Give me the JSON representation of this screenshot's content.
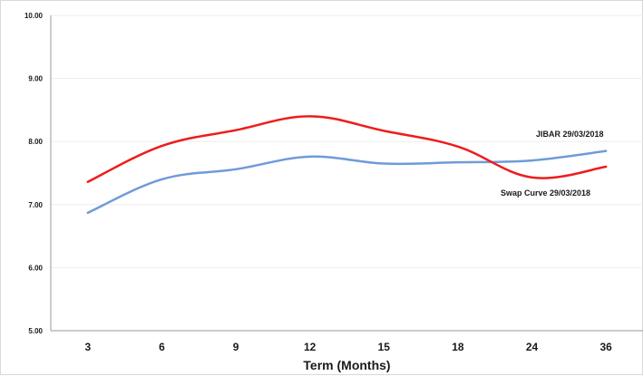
{
  "chart_data": {
    "type": "line",
    "categories": [
      "3",
      "6",
      "9",
      "12",
      "15",
      "18",
      "24",
      "36"
    ],
    "series": [
      {
        "name": "JIBAR  29/03/2018",
        "values": [
          6.87,
          7.4,
          7.56,
          7.76,
          7.65,
          7.67,
          7.7,
          7.85
        ],
        "color": "#6f9bd8"
      },
      {
        "name": "Swap Curve 29/03/2018",
        "values": [
          7.36,
          7.93,
          8.18,
          8.4,
          8.17,
          7.92,
          7.43,
          7.6
        ],
        "color": "#ee1c1c"
      }
    ],
    "y_ticks": [
      "5.00",
      "6.00",
      "7.00",
      "8.00",
      "9.00",
      "10.00"
    ],
    "ylim": [
      5,
      10
    ],
    "xlabel": "Term (Months)",
    "ylabel": "",
    "title": "",
    "grid": "horizontal",
    "legend": "inline labels"
  }
}
